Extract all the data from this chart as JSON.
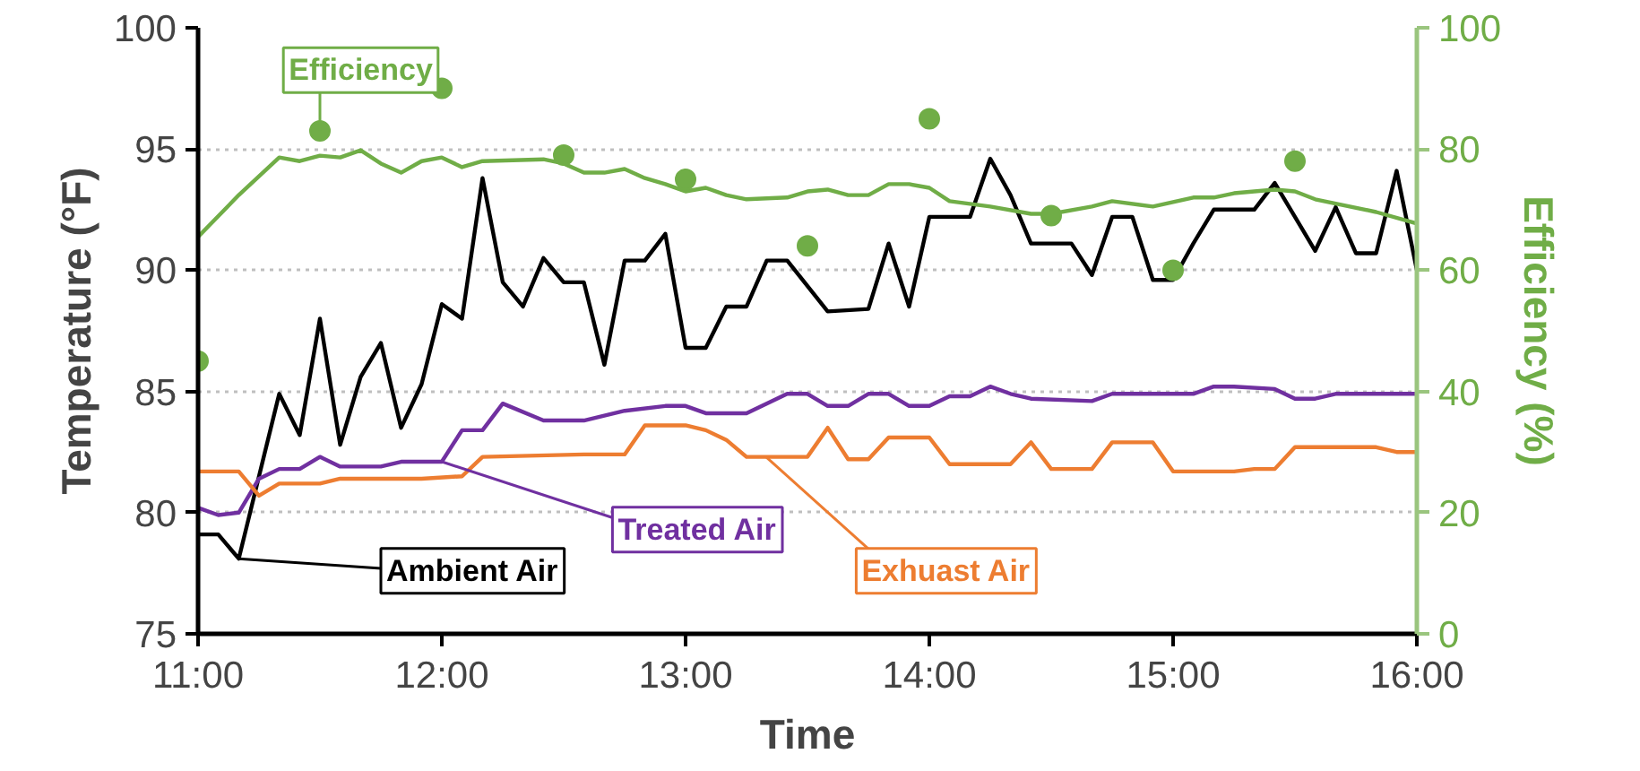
{
  "chart_data": {
    "type": "line",
    "xlabel": "Time",
    "ylabel": "Temperature (°F)",
    "y2label": "Efficiency (%)",
    "xlim": [
      11,
      16
    ],
    "xticks": [
      {
        "value": 11,
        "label": "11:00"
      },
      {
        "value": 12,
        "label": "12:00"
      },
      {
        "value": 13,
        "label": "13:00"
      },
      {
        "value": 14,
        "label": "14:00"
      },
      {
        "value": 15,
        "label": "15:00"
      },
      {
        "value": 16,
        "label": "16:00"
      }
    ],
    "ylim": [
      75,
      100
    ],
    "yticks": [
      75,
      80,
      85,
      90,
      95,
      100
    ],
    "y2lim": [
      0,
      100
    ],
    "y2ticks": [
      0,
      20,
      40,
      60,
      80,
      100
    ],
    "grid": "y",
    "legend": false,
    "series": [
      {
        "name": "Ambient Air",
        "color": "#000000",
        "x": [
          11,
          11.083,
          11.167,
          11.333,
          11.417,
          11.5,
          11.583,
          11.667,
          11.75,
          11.833,
          11.917,
          12,
          12.083,
          12.167,
          12.25,
          12.333,
          12.417,
          12.5,
          12.583,
          12.667,
          12.75,
          12.833,
          12.917,
          13,
          13.083,
          13.167,
          13.25,
          13.333,
          13.417,
          13.583,
          13.75,
          13.833,
          13.917,
          14,
          14.167,
          14.25,
          14.333,
          14.417,
          14.583,
          14.667,
          14.75,
          14.833,
          14.917,
          15,
          15.083,
          15.167,
          15.333,
          15.417,
          15.583,
          15.667,
          15.75,
          15.833,
          15.917,
          16
        ],
        "values": [
          79.1,
          79.1,
          78.1,
          84.9,
          83.2,
          88.0,
          82.8,
          85.6,
          87.0,
          83.5,
          85.3,
          88.6,
          88.0,
          93.8,
          89.5,
          88.5,
          90.5,
          89.5,
          89.5,
          86.1,
          90.4,
          90.4,
          91.5,
          86.8,
          86.8,
          88.5,
          88.5,
          90.4,
          90.4,
          88.3,
          88.4,
          91.1,
          88.5,
          92.2,
          92.2,
          94.6,
          93.1,
          91.1,
          91.1,
          89.8,
          92.2,
          92.2,
          89.6,
          89.6,
          91.1,
          92.5,
          92.5,
          93.6,
          90.8,
          92.6,
          90.7,
          90.7,
          94.1,
          90.0
        ]
      },
      {
        "name": "Treated Air",
        "color": "#7030a0",
        "x": [
          11,
          11.083,
          11.167,
          11.25,
          11.333,
          11.417,
          11.5,
          11.583,
          11.75,
          11.833,
          12,
          12.083,
          12.167,
          12.25,
          12.417,
          12.583,
          12.75,
          12.917,
          13,
          13.083,
          13.25,
          13.417,
          13.5,
          13.583,
          13.667,
          13.75,
          13.833,
          13.917,
          14,
          14.083,
          14.167,
          14.25,
          14.333,
          14.417,
          14.667,
          14.75,
          15.083,
          15.167,
          15.25,
          15.417,
          15.5,
          15.583,
          15.667,
          16
        ],
        "values": [
          80.2,
          79.9,
          80.0,
          81.4,
          81.8,
          81.8,
          82.3,
          81.9,
          81.9,
          82.1,
          82.1,
          83.4,
          83.4,
          84.5,
          83.8,
          83.8,
          84.2,
          84.4,
          84.4,
          84.1,
          84.1,
          84.9,
          84.9,
          84.4,
          84.4,
          84.9,
          84.9,
          84.4,
          84.4,
          84.8,
          84.8,
          85.2,
          84.9,
          84.7,
          84.6,
          84.9,
          84.9,
          85.2,
          85.2,
          85.1,
          84.7,
          84.7,
          84.9,
          84.9
        ]
      },
      {
        "name": "Exhuast Air",
        "color": "#ed7d31",
        "x": [
          11,
          11.167,
          11.25,
          11.333,
          11.5,
          11.583,
          11.917,
          12.083,
          12.167,
          12.583,
          12.75,
          12.833,
          13,
          13.083,
          13.167,
          13.25,
          13.5,
          13.583,
          13.667,
          13.75,
          13.833,
          14,
          14.083,
          14.333,
          14.417,
          14.5,
          14.667,
          14.75,
          14.917,
          15,
          15.25,
          15.333,
          15.417,
          15.5,
          15.833,
          15.917,
          16
        ],
        "values": [
          81.7,
          81.7,
          80.7,
          81.2,
          81.2,
          81.4,
          81.4,
          81.5,
          82.3,
          82.4,
          82.4,
          83.6,
          83.6,
          83.4,
          83.0,
          82.3,
          82.3,
          83.5,
          82.2,
          82.2,
          83.1,
          83.1,
          82.0,
          82.0,
          82.9,
          81.8,
          81.8,
          82.9,
          82.9,
          81.7,
          81.7,
          81.8,
          81.8,
          82.7,
          82.7,
          82.5,
          82.5
        ]
      },
      {
        "name": "Efficiency",
        "color": "#70ad47",
        "axis": "y2",
        "x": [
          11,
          11.167,
          11.333,
          11.417,
          11.5,
          11.583,
          11.667,
          11.75,
          11.833,
          11.917,
          12,
          12.083,
          12.167,
          12.417,
          12.5,
          12.583,
          12.667,
          12.75,
          12.833,
          12.917,
          13,
          13.083,
          13.167,
          13.25,
          13.417,
          13.5,
          13.583,
          13.667,
          13.75,
          13.833,
          13.917,
          14,
          14.083,
          14.25,
          14.417,
          14.5,
          14.667,
          14.75,
          14.917,
          15.083,
          15.167,
          15.25,
          15.417,
          15.5,
          15.583,
          15.833,
          16
        ],
        "values": [
          65.5,
          72.4,
          78.6,
          78.0,
          78.9,
          78.6,
          79.8,
          77.6,
          76.1,
          78.0,
          78.6,
          77.0,
          78.0,
          78.3,
          77.6,
          76.1,
          76.1,
          76.7,
          75.2,
          74.2,
          73.0,
          73.6,
          72.4,
          71.7,
          72.0,
          73.0,
          73.3,
          72.4,
          72.4,
          74.2,
          74.2,
          73.6,
          71.4,
          70.5,
          69.3,
          69.3,
          70.5,
          71.4,
          70.5,
          72.0,
          72.0,
          72.7,
          73.3,
          73.0,
          71.7,
          69.6,
          67.7
        ]
      },
      {
        "type": "scatter",
        "marker": "circle",
        "color": "#70ad47",
        "axis": "y2",
        "x": [
          11,
          11.5,
          12,
          12.5,
          13,
          13.5,
          14,
          14.5,
          15,
          15.5
        ],
        "values": [
          45,
          83,
          90,
          79,
          75,
          64,
          85,
          69,
          60,
          78
        ]
      }
    ]
  }
}
